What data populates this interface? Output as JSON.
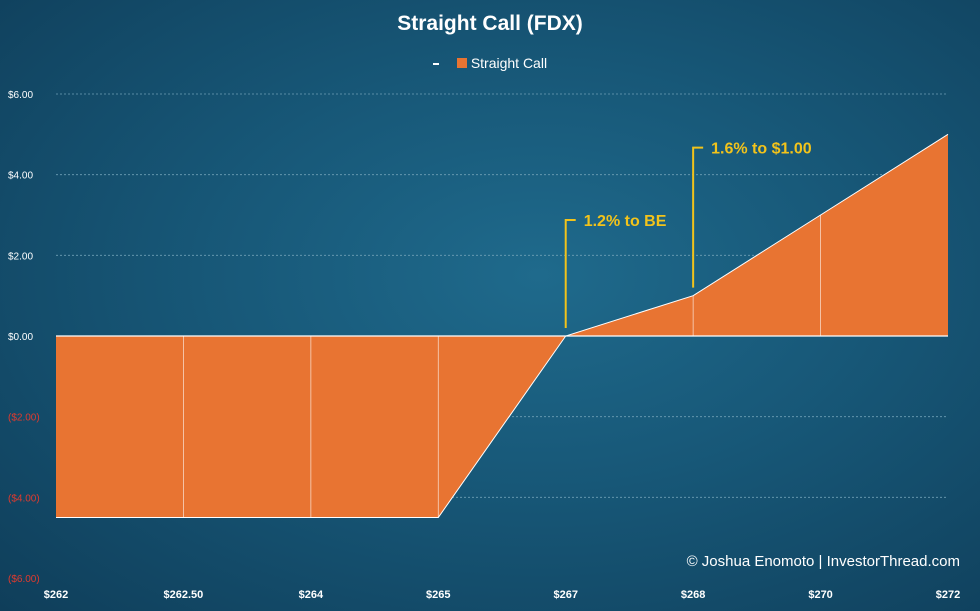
{
  "chart_data": {
    "type": "area",
    "title": "Straight Call (FDX)",
    "categories": [
      "$262",
      "$262.50",
      "$264",
      "$265",
      "$267",
      "$268",
      "$270",
      "$272"
    ],
    "series": [
      {
        "name": "Straight Call",
        "values": [
          -4.5,
          -4.5,
          -4.5,
          -4.5,
          0,
          1,
          3,
          5
        ]
      }
    ],
    "ylim": [
      -6,
      6
    ],
    "yticks": [
      {
        "value": 6,
        "label": "$6.00",
        "negative": false
      },
      {
        "value": 4,
        "label": "$4.00",
        "negative": false
      },
      {
        "value": 2,
        "label": "$2.00",
        "negative": false
      },
      {
        "value": 0,
        "label": "$0.00",
        "negative": false
      },
      {
        "value": -2,
        "label": "($2.00)",
        "negative": true
      },
      {
        "value": -4,
        "label": "($4.00)",
        "negative": true
      },
      {
        "value": -6,
        "label": "($6.00)",
        "negative": true
      }
    ],
    "grid": true,
    "legend_position": "top",
    "annotations": [
      {
        "text": "1.2% to BE",
        "category_index": 4,
        "value": 0
      },
      {
        "text": "1.6% to $1.00",
        "category_index": 5,
        "value": 1
      }
    ],
    "colors": {
      "fill": "#e87432",
      "grid": "#6f9fb5",
      "tick_label": "#ffffff",
      "negative_tick_label": "#e03a2e",
      "annotation": "#f2c31b",
      "divider": "#ffffff"
    }
  },
  "legend": {
    "label": "Straight Call"
  },
  "credit": "© Joshua Enomoto | InvestorThread.com"
}
